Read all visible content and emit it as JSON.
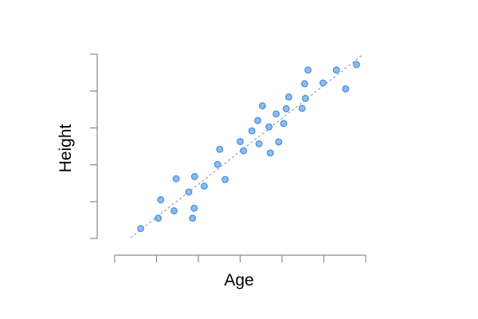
{
  "chart_data": {
    "type": "scatter",
    "title": "",
    "xlabel": "Age",
    "ylabel": "Height",
    "xlim": [
      0,
      6
    ],
    "ylim": [
      0,
      5
    ],
    "x_ticks": [
      0,
      1,
      2,
      3,
      4,
      5,
      6
    ],
    "y_ticks": [
      0,
      1,
      2,
      3,
      4,
      5
    ],
    "tick_labels_shown": false,
    "grid": false,
    "legend": "none",
    "marker_fill": "#8fbcef",
    "marker_stroke": "#4a90e2",
    "trendline": {
      "style": "dashed",
      "color": "#8c8c8c",
      "x": [
        0.38,
        5.92
      ],
      "y": [
        0.02,
        4.98
      ]
    },
    "series": [
      {
        "points": [
          [
            0.62,
            0.27
          ],
          [
            1.04,
            0.55
          ],
          [
            1.1,
            1.05
          ],
          [
            1.42,
            0.75
          ],
          [
            1.47,
            1.62
          ],
          [
            1.77,
            1.26
          ],
          [
            1.86,
            0.55
          ],
          [
            1.9,
            0.82
          ],
          [
            1.91,
            1.68
          ],
          [
            2.14,
            1.42
          ],
          [
            2.46,
            2.01
          ],
          [
            2.51,
            2.42
          ],
          [
            2.64,
            1.6
          ],
          [
            3.0,
            2.63
          ],
          [
            3.08,
            2.38
          ],
          [
            3.28,
            2.92
          ],
          [
            3.42,
            3.2
          ],
          [
            3.45,
            2.57
          ],
          [
            3.53,
            3.6
          ],
          [
            3.69,
            3.03
          ],
          [
            3.72,
            2.32
          ],
          [
            3.86,
            3.38
          ],
          [
            3.92,
            2.62
          ],
          [
            4.04,
            3.12
          ],
          [
            4.1,
            3.52
          ],
          [
            4.16,
            3.84
          ],
          [
            4.48,
            3.53
          ],
          [
            4.54,
            4.2
          ],
          [
            4.56,
            3.8
          ],
          [
            4.62,
            4.57
          ],
          [
            4.98,
            4.22
          ],
          [
            5.3,
            4.57
          ],
          [
            5.52,
            4.06
          ],
          [
            5.78,
            4.72
          ]
        ]
      }
    ]
  }
}
